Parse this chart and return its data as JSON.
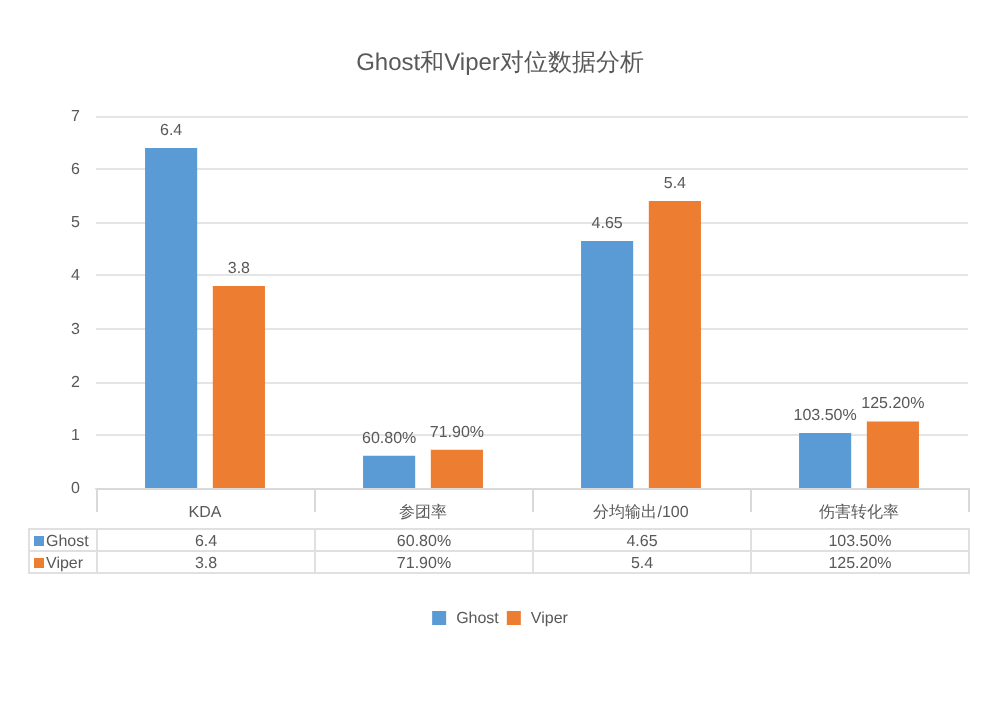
{
  "chart_data": {
    "type": "bar",
    "title": "Ghost和Viper对位数据分析",
    "categories": [
      "KDA",
      "参团率",
      "分均输出/100",
      "伤害转化率"
    ],
    "series": [
      {
        "name": "Ghost",
        "color": "#5b9bd5",
        "values": [
          6.4,
          0.608,
          4.65,
          1.035
        ],
        "value_labels": [
          "6.4",
          "60.80%",
          "4.65",
          "103.50%"
        ]
      },
      {
        "name": "Viper",
        "color": "#ed7d31",
        "values": [
          3.8,
          0.719,
          5.4,
          1.252
        ],
        "value_labels": [
          "3.8",
          "71.90%",
          "5.4",
          "125.20%"
        ]
      }
    ],
    "ylim": [
      0,
      7
    ],
    "yticks": [
      0,
      1,
      2,
      3,
      4,
      5,
      6,
      7
    ],
    "grid": "y",
    "legend": "bottom"
  }
}
